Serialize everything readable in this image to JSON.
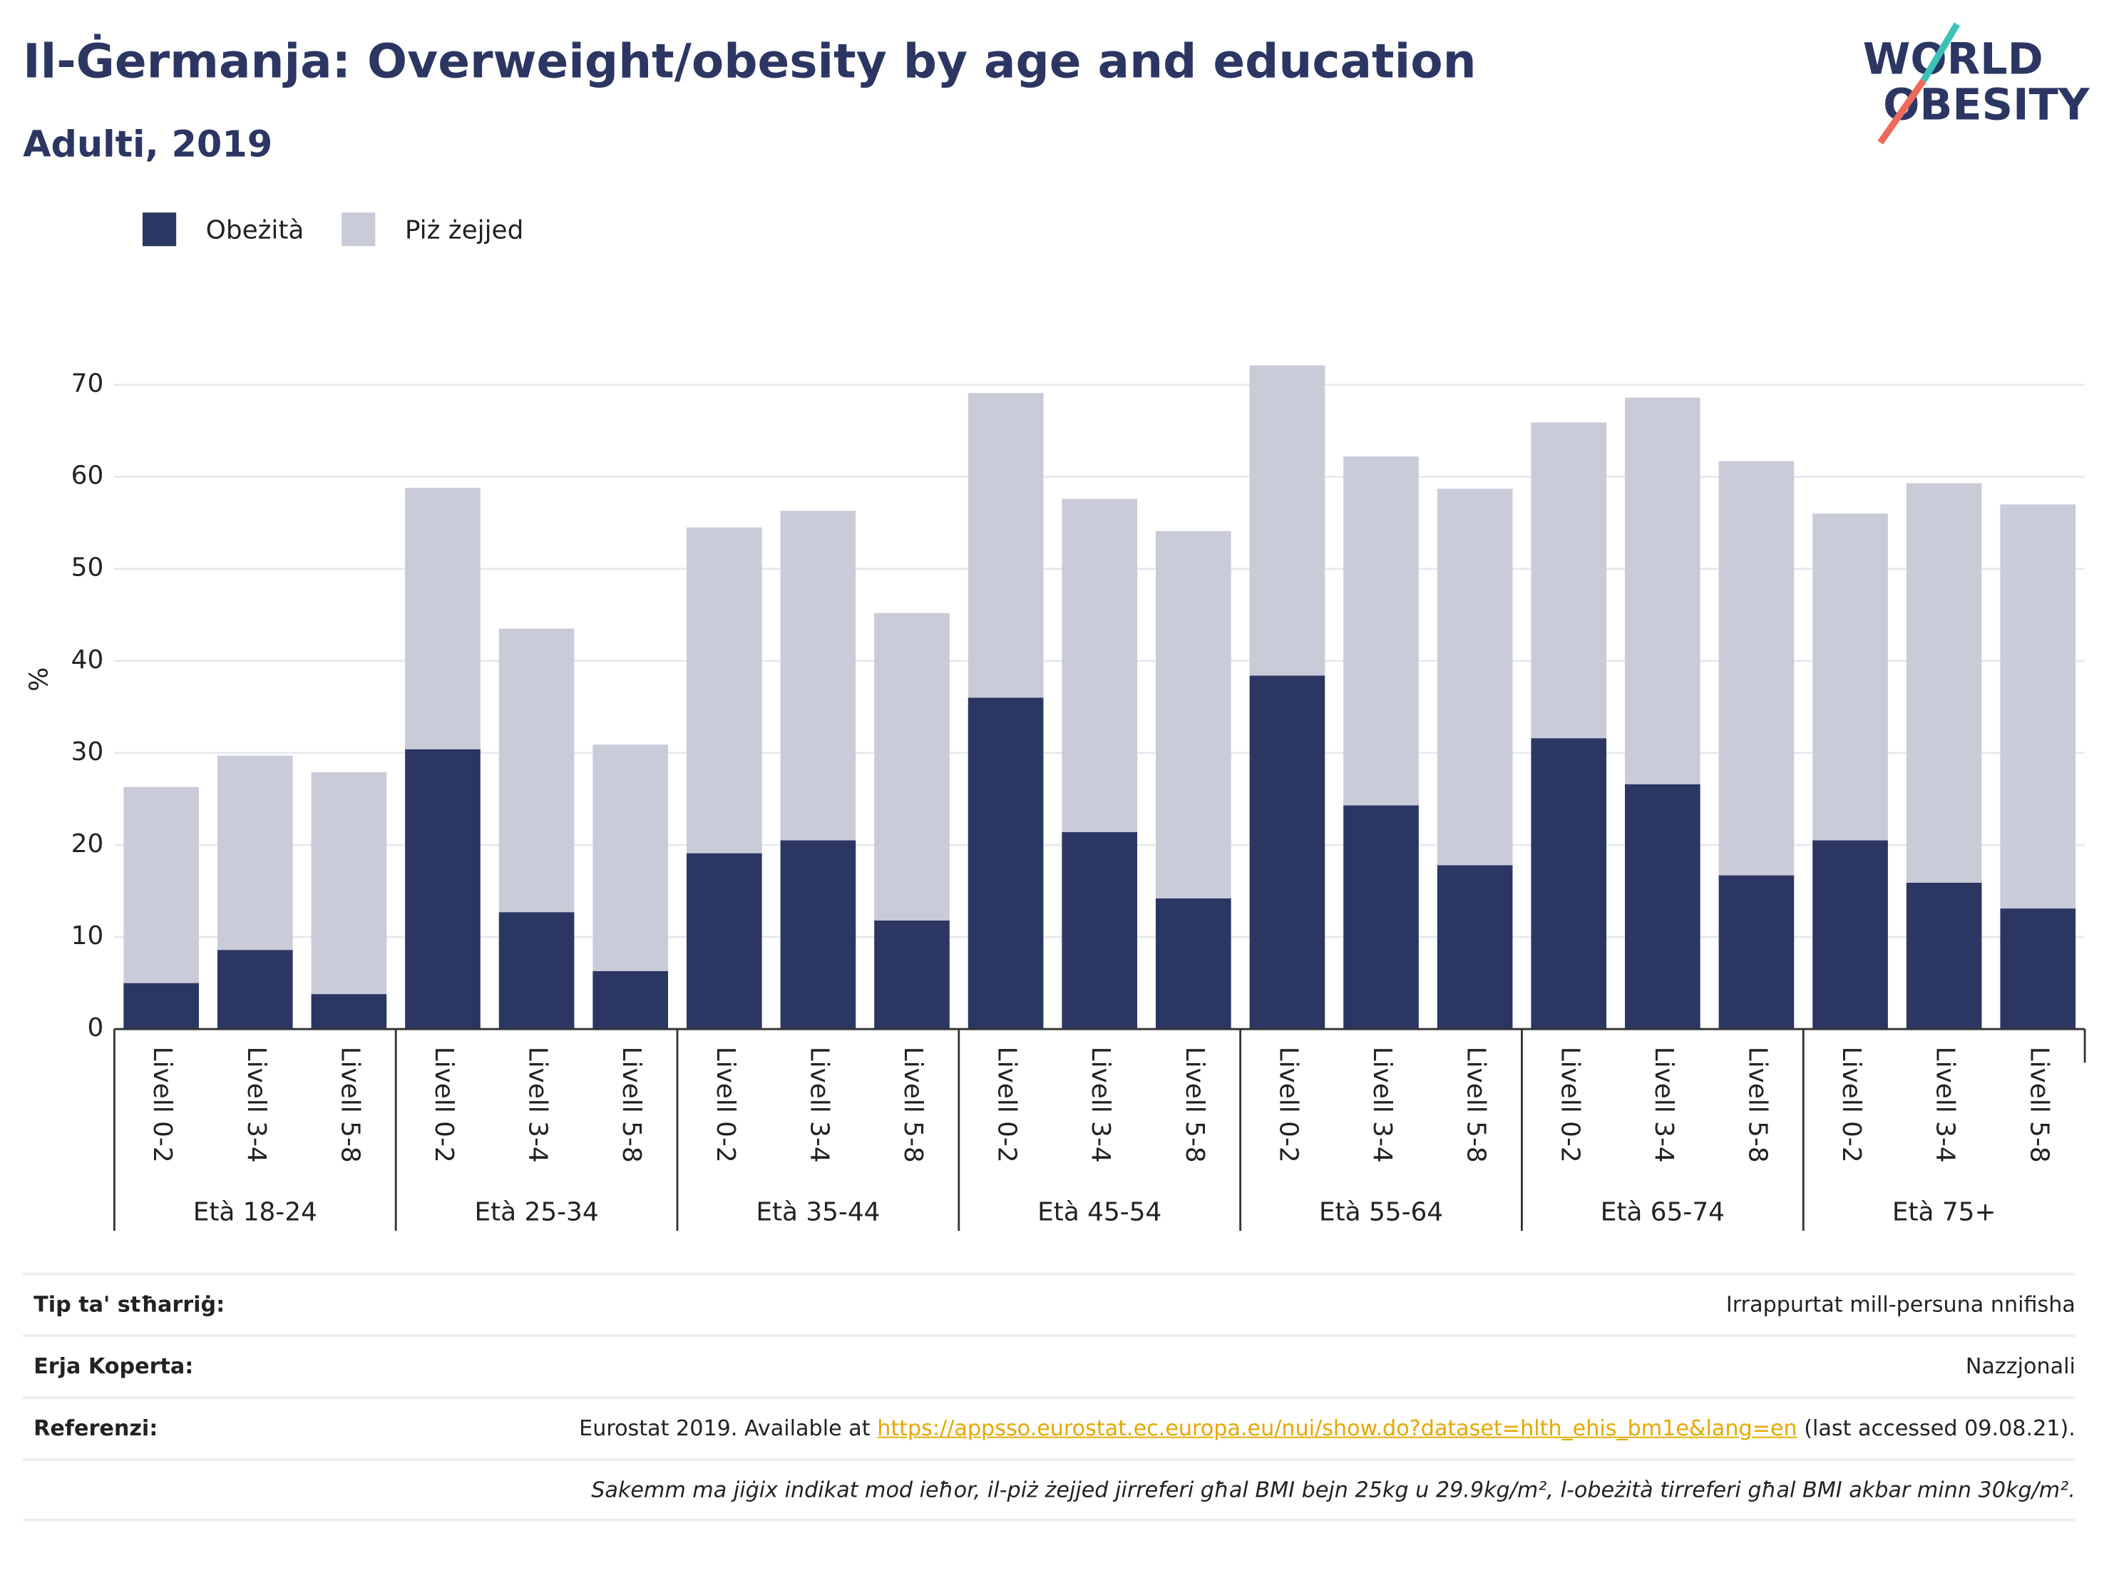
{
  "chart_data": {
    "type": "stacked_bar",
    "title": "Il-Ġermanja: Overweight/obesity by age and education",
    "subtitle": "Adulti, 2019",
    "logo": [
      "WORLD",
      "OBESITY"
    ],
    "ylabel": "%",
    "categories": [
      "Livell 0-2",
      "Livell 3-4",
      "Livell 5-8",
      "Livell 0-2",
      "Livell 3-4",
      "Livell 5-8",
      "Livell 0-2",
      "Livell 3-4",
      "Livell 5-8",
      "Livell 0-2",
      "Livell 3-4",
      "Livell 5-8",
      "Livell 0-2",
      "Livell 3-4",
      "Livell 5-8",
      "Livell 0-2",
      "Livell 3-4",
      "Livell 5-8",
      "Livell 0-2",
      "Livell 3-4",
      "Livell 5-8"
    ],
    "groups": [
      "Età 18-24",
      "Età 25-34",
      "Età 35-44",
      "Età 45-54",
      "Età 55-64",
      "Età 65-74",
      "Età 75+"
    ],
    "series": [
      {
        "name": "Obeżità",
        "color": "#2b3663",
        "values": [
          5.0,
          8.6,
          3.8,
          30.4,
          12.7,
          6.3,
          19.1,
          20.5,
          11.8,
          36.0,
          21.4,
          14.2,
          38.4,
          24.3,
          17.8,
          31.6,
          26.6,
          16.7,
          20.5,
          15.9,
          13.1
        ]
      },
      {
        "name": "Piż żejjed",
        "color": "#cacbd8",
        "values": [
          21.3,
          21.1,
          24.1,
          28.4,
          30.8,
          24.6,
          35.4,
          35.8,
          33.4,
          33.1,
          36.2,
          39.9,
          33.7,
          37.9,
          40.9,
          34.3,
          42.0,
          45.0,
          35.5,
          43.4,
          43.9
        ]
      }
    ],
    "ylim": [
      0,
      75
    ],
    "yticks": [
      0,
      10,
      20,
      30,
      40,
      50,
      60,
      70
    ],
    "grid": true,
    "legend": "top-left"
  },
  "footer": {
    "rows": [
      {
        "label": "Tip ta' stħarriġ:",
        "value": "Irrappurtat mill-persuna nnifisha"
      },
      {
        "label": "Erja Koperta:",
        "value": "Nazzjonali"
      },
      {
        "label": "Referenzi:",
        "text": "Eurostat 2019. Available at",
        "link": "https://appsso.eurostat.ec.europa.eu/nui/show.do?dataset=hlth_ehis_bm1e&lang=en",
        "after": "(last accessed 09.08.21)."
      }
    ],
    "note": "Sakemm ma jiġix indikat mod ieħor, il-piż żejjed jirreferi għal BMI bejn 25kg u 29.9kg/m², l-obeżità tirreferi għal BMI akbar minn 30kg/m²."
  }
}
